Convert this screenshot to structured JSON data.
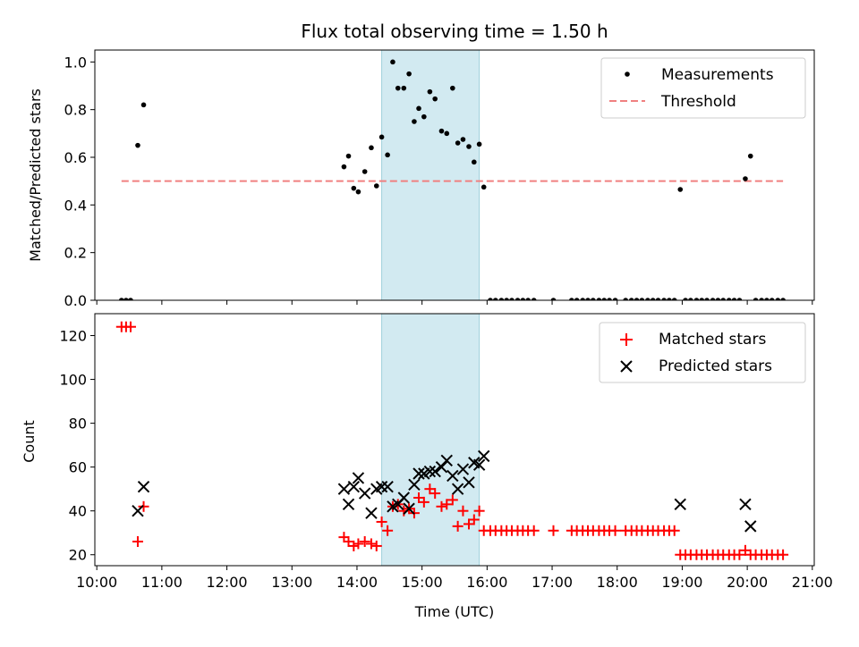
{
  "chart_data": [
    {
      "type": "scatter",
      "title": "Flux total observing time = 1.50 h",
      "xlabel": "",
      "ylabel": "Matched/Predicted stars",
      "xlim": [
        9.97,
        21.03
      ],
      "ylim": [
        0,
        1.05
      ],
      "yticks": [
        0,
        0.2,
        0.4,
        0.6,
        0.8,
        1.0
      ],
      "yticklabels": [
        "0.0",
        "0.2",
        "0.4",
        "0.6",
        "0.8",
        "1.0"
      ],
      "shaded_x_range": [
        14.38,
        15.88
      ],
      "legend": {
        "position": "top-right",
        "entries": [
          "Measurements",
          "Threshold"
        ]
      },
      "threshold": {
        "name": "Threshold",
        "y": 0.5,
        "x": [
          10.38,
          20.55
        ]
      },
      "series": [
        {
          "name": "Measurements",
          "x": [
            10.38,
            10.45,
            10.52,
            10.63,
            10.72,
            13.8,
            13.87,
            13.95,
            14.02,
            14.12,
            14.22,
            14.3,
            14.38,
            14.47,
            14.55,
            14.63,
            14.72,
            14.8,
            14.88,
            14.95,
            15.03,
            15.12,
            15.2,
            15.3,
            15.38,
            15.47,
            15.55,
            15.63,
            15.72,
            15.8,
            15.88,
            15.95,
            16.05,
            16.13,
            16.22,
            16.3,
            16.38,
            16.47,
            16.55,
            16.63,
            16.72,
            17.02,
            17.3,
            17.38,
            17.47,
            17.55,
            17.63,
            17.72,
            17.8,
            17.88,
            17.97,
            18.13,
            18.22,
            18.3,
            18.38,
            18.47,
            18.55,
            18.63,
            18.72,
            18.8,
            18.88,
            18.97,
            19.05,
            19.13,
            19.22,
            19.3,
            19.38,
            19.47,
            19.55,
            19.63,
            19.72,
            19.8,
            19.88,
            19.97,
            20.05,
            20.13,
            20.22,
            20.3,
            20.38,
            20.47,
            20.55
          ],
          "y": [
            0,
            0,
            0,
            0.65,
            0.82,
            0.56,
            0.605,
            0.47,
            0.455,
            0.54,
            0.64,
            0.48,
            0.685,
            0.61,
            1.0,
            0.89,
            0.89,
            0.95,
            0.75,
            0.805,
            0.77,
            0.875,
            0.845,
            0.71,
            0.7,
            0.89,
            0.66,
            0.675,
            0.645,
            0.58,
            0.655,
            0.475,
            0,
            0,
            0,
            0,
            0,
            0,
            0,
            0,
            0,
            0,
            0,
            0,
            0,
            0,
            0,
            0,
            0,
            0,
            0,
            0,
            0,
            0,
            0,
            0,
            0,
            0,
            0,
            0,
            0,
            0.465,
            0,
            0,
            0,
            0,
            0,
            0,
            0,
            0,
            0,
            0,
            0,
            0.51,
            0.605,
            0,
            0,
            0,
            0,
            0,
            0
          ]
        }
      ]
    },
    {
      "type": "scatter",
      "title": "",
      "xlabel": "Time (UTC)",
      "ylabel": "Count",
      "xlim": [
        9.97,
        21.03
      ],
      "ylim": [
        15,
        130
      ],
      "yticks": [
        20,
        40,
        60,
        80,
        100,
        120
      ],
      "yticklabels": [
        "20",
        "40",
        "60",
        "80",
        "100",
        "120"
      ],
      "xticks": [
        10,
        11,
        12,
        13,
        14,
        15,
        16,
        17,
        18,
        19,
        20,
        21
      ],
      "xticklabels": [
        "10:00",
        "11:00",
        "12:00",
        "13:00",
        "14:00",
        "15:00",
        "16:00",
        "17:00",
        "18:00",
        "19:00",
        "20:00",
        "21:00"
      ],
      "shaded_x_range": [
        14.38,
        15.88
      ],
      "legend": {
        "position": "top-right",
        "entries": [
          "Matched stars",
          "Predicted stars"
        ]
      },
      "series": [
        {
          "name": "Matched stars",
          "x": [
            10.38,
            10.45,
            10.52,
            10.63,
            10.72,
            13.8,
            13.87,
            13.95,
            14.02,
            14.12,
            14.22,
            14.3,
            14.38,
            14.47,
            14.55,
            14.63,
            14.72,
            14.8,
            14.88,
            14.95,
            15.03,
            15.12,
            15.2,
            15.3,
            15.38,
            15.47,
            15.55,
            15.63,
            15.72,
            15.8,
            15.88,
            15.95,
            16.05,
            16.13,
            16.22,
            16.3,
            16.38,
            16.47,
            16.55,
            16.63,
            16.72,
            17.02,
            17.3,
            17.38,
            17.47,
            17.55,
            17.63,
            17.72,
            17.8,
            17.88,
            17.97,
            18.13,
            18.22,
            18.3,
            18.38,
            18.47,
            18.55,
            18.63,
            18.72,
            18.8,
            18.88,
            18.97,
            19.05,
            19.13,
            19.22,
            19.3,
            19.38,
            19.47,
            19.55,
            19.63,
            19.72,
            19.8,
            19.88,
            19.97,
            20.05,
            20.13,
            20.22,
            20.3,
            20.38,
            20.47,
            20.55
          ],
          "y": [
            124,
            124,
            124,
            26,
            42,
            28,
            26,
            24,
            25,
            26,
            25,
            24,
            35,
            31,
            42,
            43,
            40,
            41,
            39,
            46,
            44,
            50,
            48,
            42,
            43,
            45,
            33,
            40,
            34,
            36,
            40,
            31,
            31,
            31,
            31,
            31,
            31,
            31,
            31,
            31,
            31,
            31,
            31,
            31,
            31,
            31,
            31,
            31,
            31,
            31,
            31,
            31,
            31,
            31,
            31,
            31,
            31,
            31,
            31,
            31,
            31,
            20,
            20,
            20,
            20,
            20,
            20,
            20,
            20,
            20,
            20,
            20,
            20,
            22,
            20,
            20,
            20,
            20,
            20,
            20,
            20
          ]
        },
        {
          "name": "Predicted stars",
          "x": [
            10.63,
            10.72,
            13.8,
            13.87,
            13.95,
            14.02,
            14.12,
            14.22,
            14.3,
            14.38,
            14.47,
            14.55,
            14.63,
            14.72,
            14.8,
            14.88,
            14.95,
            15.03,
            15.12,
            15.2,
            15.3,
            15.38,
            15.47,
            15.55,
            15.63,
            15.72,
            15.8,
            15.88,
            15.95,
            18.97,
            19.97,
            20.05
          ],
          "y": [
            40,
            51,
            50,
            43,
            51,
            55,
            48,
            39,
            50,
            51,
            51,
            42,
            43,
            46,
            41,
            52,
            57,
            57,
            58,
            58,
            60,
            63,
            56,
            50,
            59,
            53,
            62,
            61,
            65,
            43,
            43,
            33
          ]
        }
      ]
    }
  ]
}
